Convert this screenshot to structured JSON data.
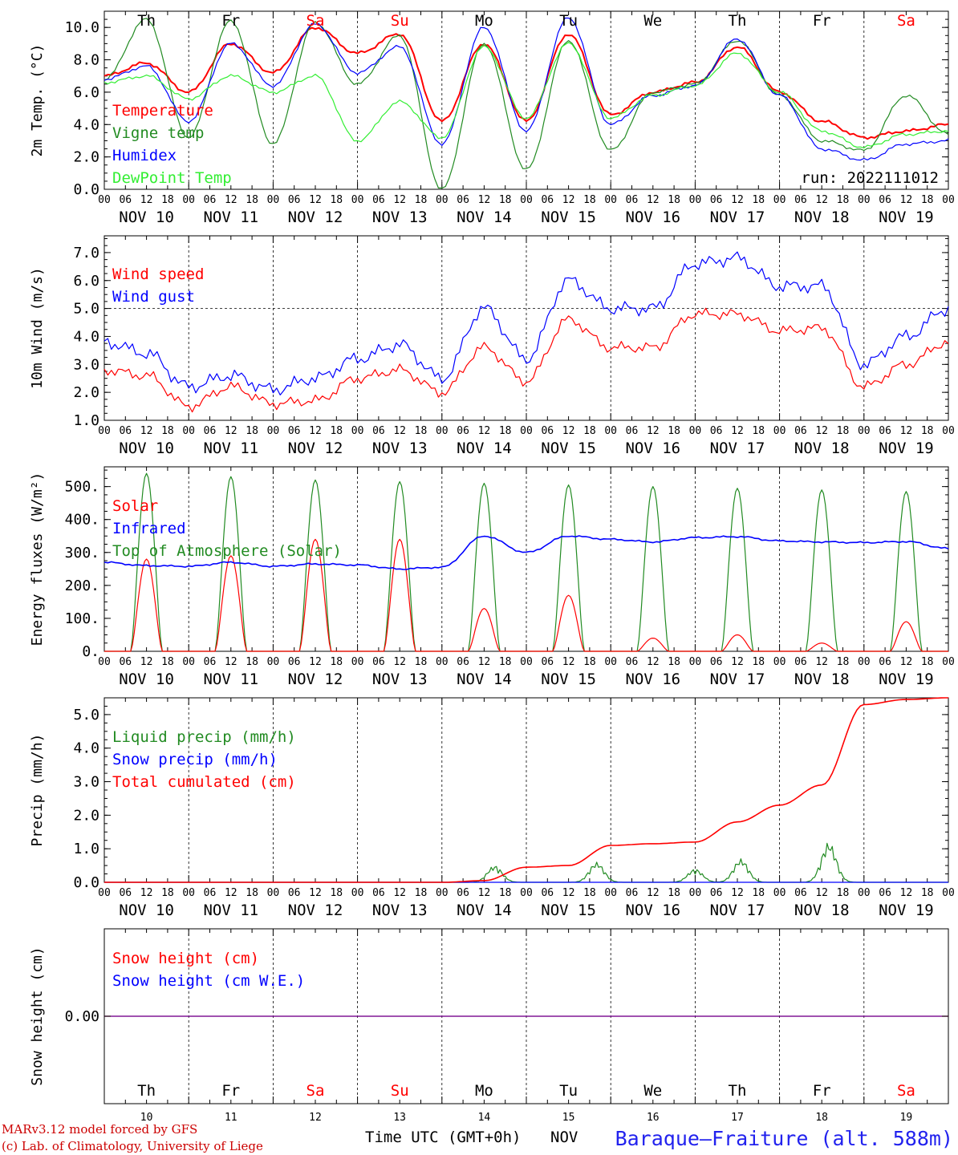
{
  "chart_data": [
    {
      "type": "line",
      "ylabel": "2m Temp. (°C)",
      "ylim": [
        0,
        11
      ],
      "yticks": [
        "0.0",
        "2.0",
        "4.0",
        "6.0",
        "8.0",
        "10.0"
      ],
      "grid": "vertical dashed at day boundaries",
      "legend_placement": "left",
      "annotation": "run: 2022111012",
      "x_hours": [
        0,
        12,
        24,
        36,
        48,
        60,
        72,
        84,
        96,
        108,
        120,
        132,
        144,
        156,
        168,
        180,
        192,
        204,
        216,
        228,
        240
      ],
      "series": [
        {
          "name": "Temperature",
          "color": "#ff0000",
          "values": [
            7.0,
            7.8,
            6.0,
            9.0,
            7.2,
            10.0,
            8.4,
            9.6,
            4.2,
            9.0,
            4.2,
            9.6,
            4.6,
            6.0,
            6.6,
            8.8,
            6.0,
            4.2,
            3.2,
            3.6,
            4.0
          ]
        },
        {
          "name": "Vigne temp",
          "color": "#228b22",
          "values": [
            6.8,
            10.5,
            3.2,
            10.4,
            2.8,
            10.3,
            6.5,
            9.5,
            0.0,
            9.0,
            1.2,
            9.2,
            2.4,
            6.0,
            6.5,
            9.2,
            5.8,
            3.0,
            2.4,
            5.8,
            3.4
          ]
        },
        {
          "name": "Humidex",
          "color": "#0000ff",
          "values": [
            6.8,
            7.6,
            4.2,
            9.0,
            6.4,
            10.2,
            7.2,
            8.8,
            2.8,
            10.0,
            3.6,
            10.6,
            4.0,
            5.8,
            6.4,
            9.3,
            5.8,
            2.5,
            1.8,
            2.8,
            3.0
          ]
        },
        {
          "name": "DewPoint Temp",
          "color": "#33ee33",
          "values": [
            6.6,
            7.0,
            5.6,
            7.0,
            6.0,
            7.0,
            3.0,
            5.4,
            3.2,
            8.8,
            4.4,
            9.0,
            4.4,
            5.8,
            6.4,
            8.4,
            6.0,
            3.6,
            2.6,
            3.4,
            3.6
          ]
        }
      ]
    },
    {
      "type": "line",
      "ylabel": "10m Wind (m/s)",
      "ylim": [
        1,
        7.6
      ],
      "yticks": [
        "1.0",
        "2.0",
        "3.0",
        "4.0",
        "5.0",
        "6.0",
        "7.0"
      ],
      "reference_line": 5.0,
      "legend_placement": "left",
      "x_hours": [
        0,
        12,
        24,
        36,
        48,
        60,
        72,
        84,
        96,
        108,
        120,
        132,
        144,
        156,
        168,
        180,
        192,
        204,
        216,
        228,
        240
      ],
      "series": [
        {
          "name": "Wind speed",
          "color": "#ff0000",
          "values": [
            2.8,
            2.6,
            1.5,
            2.2,
            1.6,
            1.7,
            2.5,
            2.8,
            2.0,
            3.6,
            2.4,
            4.6,
            3.6,
            3.6,
            4.8,
            4.8,
            4.2,
            4.3,
            2.2,
            3.0,
            3.8
          ]
        },
        {
          "name": "Wind gust",
          "color": "#0000ff",
          "values": [
            3.8,
            3.4,
            2.2,
            2.6,
            2.1,
            2.5,
            3.2,
            3.7,
            2.5,
            5.0,
            3.2,
            6.0,
            5.0,
            5.0,
            6.6,
            6.8,
            5.8,
            5.8,
            3.0,
            4.0,
            5.0
          ]
        }
      ]
    },
    {
      "type": "line",
      "ylabel": "Energy fluxes (W/m²)",
      "ylim": [
        0,
        560
      ],
      "yticks": [
        "0.",
        "100.",
        "200.",
        "300.",
        "400.",
        "500."
      ],
      "legend_placement": "left",
      "solar_peaks_by_day": [
        280,
        290,
        340,
        340,
        130,
        170,
        40,
        50,
        25,
        90
      ],
      "toa_peaks_by_day": [
        540,
        530,
        520,
        515,
        510,
        505,
        500,
        495,
        490,
        485
      ],
      "series": [
        {
          "name": "Solar",
          "color": "#ff0000"
        },
        {
          "name": "Infrared",
          "color": "#0000ff",
          "values_every_12h": [
            270,
            260,
            258,
            270,
            258,
            265,
            262,
            250,
            255,
            350,
            300,
            350,
            340,
            332,
            345,
            348,
            335,
            332,
            330,
            333,
            312
          ]
        },
        {
          "name": "Top of Atmosphere (Solar)",
          "color": "#228b22"
        }
      ]
    },
    {
      "type": "line",
      "ylabel": "Precip (mm/h)",
      "ylim": [
        0,
        5.5
      ],
      "yticks": [
        "0.0",
        "1.0",
        "2.0",
        "3.0",
        "4.0",
        "5.0"
      ],
      "legend_placement": "left",
      "x_hours": [
        0,
        12,
        24,
        36,
        48,
        60,
        72,
        84,
        96,
        108,
        120,
        132,
        144,
        156,
        168,
        180,
        192,
        204,
        216,
        228,
        240
      ],
      "series": [
        {
          "name": "Liquid precip (mm/h)",
          "color": "#228b22",
          "peaks": [
            [
              111,
              0.5
            ],
            [
              140,
              0.6
            ],
            [
              168,
              0.4
            ],
            [
              181,
              0.7
            ],
            [
              206,
              1.2
            ]
          ]
        },
        {
          "name": "Snow precip (mm/h)",
          "color": "#0000ff",
          "values": [
            0,
            0,
            0,
            0,
            0,
            0,
            0,
            0,
            0,
            0,
            0,
            0,
            0,
            0,
            0,
            0,
            0,
            0,
            0,
            0,
            0
          ]
        },
        {
          "name": "Total cumulated (cm)",
          "color": "#ff0000",
          "values": [
            0,
            0,
            0,
            0,
            0,
            0,
            0,
            0,
            0,
            0.05,
            0.45,
            0.5,
            1.1,
            1.15,
            1.2,
            1.8,
            2.3,
            2.9,
            5.3,
            5.45,
            5.5
          ]
        }
      ]
    },
    {
      "type": "line",
      "ylabel": "Snow height (cm)",
      "ytick": "0.00",
      "legend_placement": "left",
      "series": [
        {
          "name": "Snow height (cm)",
          "color": "#ff0000",
          "values": [
            0,
            0
          ]
        },
        {
          "name": "Snow height (cm W.E.)",
          "color": "#0000ff",
          "values": [
            0,
            0
          ]
        }
      ]
    }
  ],
  "axis": {
    "hour_ticks": [
      "00",
      "06",
      "12",
      "18"
    ],
    "end_tick": "00",
    "dates": [
      "NOV 10",
      "NOV 11",
      "NOV 12",
      "NOV 13",
      "NOV 14",
      "NOV 15",
      "NOV 16",
      "NOV 17",
      "NOV 18",
      "NOV 19"
    ],
    "day_numbers": [
      "10",
      "11",
      "12",
      "13",
      "14",
      "15",
      "16",
      "17",
      "18",
      "19"
    ],
    "days": [
      {
        "label": "Th",
        "color": "#000000"
      },
      {
        "label": "Fr",
        "color": "#000000"
      },
      {
        "label": "Sa",
        "color": "#ff0000"
      },
      {
        "label": "Su",
        "color": "#ff0000"
      },
      {
        "label": "Mo",
        "color": "#000000"
      },
      {
        "label": "Tu",
        "color": "#000000"
      },
      {
        "label": "We",
        "color": "#000000"
      },
      {
        "label": "Th",
        "color": "#000000"
      },
      {
        "label": "Fr",
        "color": "#000000"
      },
      {
        "label": "Sa",
        "color": "#ff0000"
      }
    ],
    "x_title": "Time UTC (GMT+0h)",
    "month": "NOV"
  },
  "footer": {
    "model": "MARv3.12 model forced by GFS",
    "credit": "(c) Lab. of Climatology, University of Liege",
    "station": "Baraque–Fraiture (alt. 588m)"
  }
}
